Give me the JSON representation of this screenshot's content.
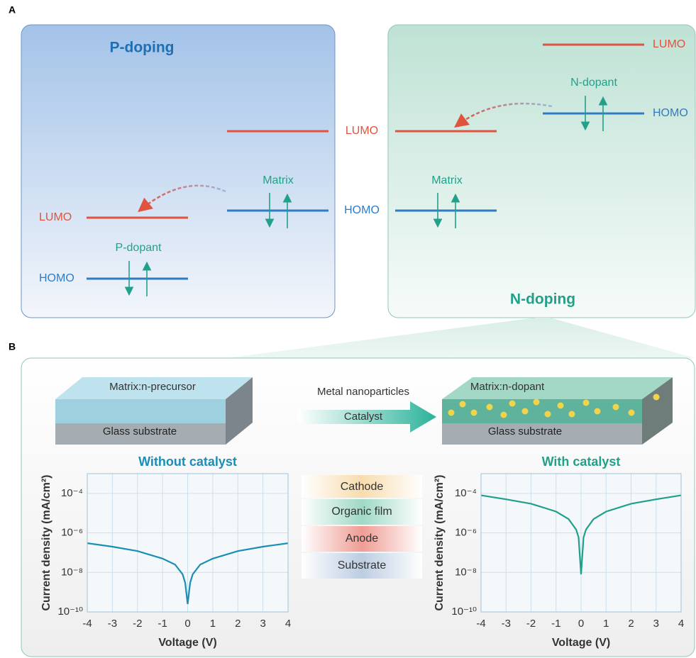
{
  "panel_labels": {
    "a": "A",
    "b": "B"
  },
  "panel_a": {
    "p_doping_title": "P-doping",
    "n_doping_title": "N-doping",
    "matrix_lumo": "LUMO",
    "matrix_homo": "HOMO",
    "p_matrix_label": "Matrix",
    "n_matrix_label": "Matrix",
    "p_dopant_label": "P-dopant",
    "p_dopant_lumo": "LUMO",
    "p_dopant_homo": "HOMO",
    "n_dopant_label": "N-dopant",
    "n_dopant_lumo": "LUMO",
    "n_dopant_homo": "HOMO"
  },
  "panel_b": {
    "before_film": "Matrix:n-precursor",
    "before_substrate": "Glass substrate",
    "process_label": "Metal nanoparticles",
    "arrow_label": "Catalyst",
    "after_film": "Matrix:n-dopant",
    "after_substrate": "Glass substrate",
    "device_layers": [
      "Cathode",
      "Organic film",
      "Anode",
      "Substrate"
    ]
  },
  "chart_data": [
    {
      "type": "line",
      "title": "Without catalyst",
      "x_label": "Voltage (V)",
      "y_label": "Current density (mA/cm²)",
      "log_y": true,
      "grid": true,
      "x": [
        -4,
        -3,
        -2,
        -1,
        -0.5,
        -0.2,
        -0.1,
        0,
        0.1,
        0.2,
        0.5,
        1,
        2,
        3,
        4
      ],
      "series": [
        {
          "color": "#1a8fb5",
          "values": [
            3e-07,
            2e-07,
            1.2e-07,
            5e-08,
            2.5e-08,
            8e-09,
            3e-09,
            2.5e-10,
            3e-09,
            8e-09,
            2.5e-08,
            5e-08,
            1.2e-07,
            2e-07,
            3e-07
          ]
        }
      ],
      "xlim": [
        -4,
        4
      ],
      "xticks": [
        -4,
        -3,
        -2,
        -1,
        0,
        1,
        2,
        3,
        4
      ],
      "ylim": [
        1e-10,
        0.001
      ],
      "yticks": [
        {
          "value": 1e-10,
          "label": "10⁻¹⁰"
        },
        {
          "value": 1e-08,
          "label": "10⁻⁸"
        },
        {
          "value": 1e-06,
          "label": "10⁻⁶"
        },
        {
          "value": 0.0001,
          "label": "10⁻⁴"
        }
      ]
    },
    {
      "type": "line",
      "title": "With catalyst",
      "x_label": "Voltage (V)",
      "y_label": "Current density (mA/cm²)",
      "log_y": true,
      "grid": true,
      "x": [
        -4,
        -3,
        -2,
        -1,
        -0.5,
        -0.2,
        -0.1,
        0,
        0.1,
        0.2,
        0.5,
        1,
        2,
        3,
        4
      ],
      "series": [
        {
          "color": "#1fa08a",
          "values": [
            8e-05,
            5e-05,
            3e-05,
            1.2e-05,
            5e-06,
            1.5e-06,
            6e-07,
            8e-09,
            6e-07,
            1.5e-06,
            5e-06,
            1.2e-05,
            3e-05,
            5e-05,
            8e-05
          ]
        }
      ],
      "xlim": [
        -4,
        4
      ],
      "xticks": [
        -4,
        -3,
        -2,
        -1,
        0,
        1,
        2,
        3,
        4
      ],
      "ylim": [
        1e-10,
        0.001
      ],
      "yticks": [
        {
          "value": 1e-10,
          "label": "10⁻¹⁰"
        },
        {
          "value": 1e-08,
          "label": "10⁻⁸"
        },
        {
          "value": 1e-06,
          "label": "10⁻⁶"
        },
        {
          "value": 0.0001,
          "label": "10⁻⁴"
        }
      ]
    }
  ]
}
